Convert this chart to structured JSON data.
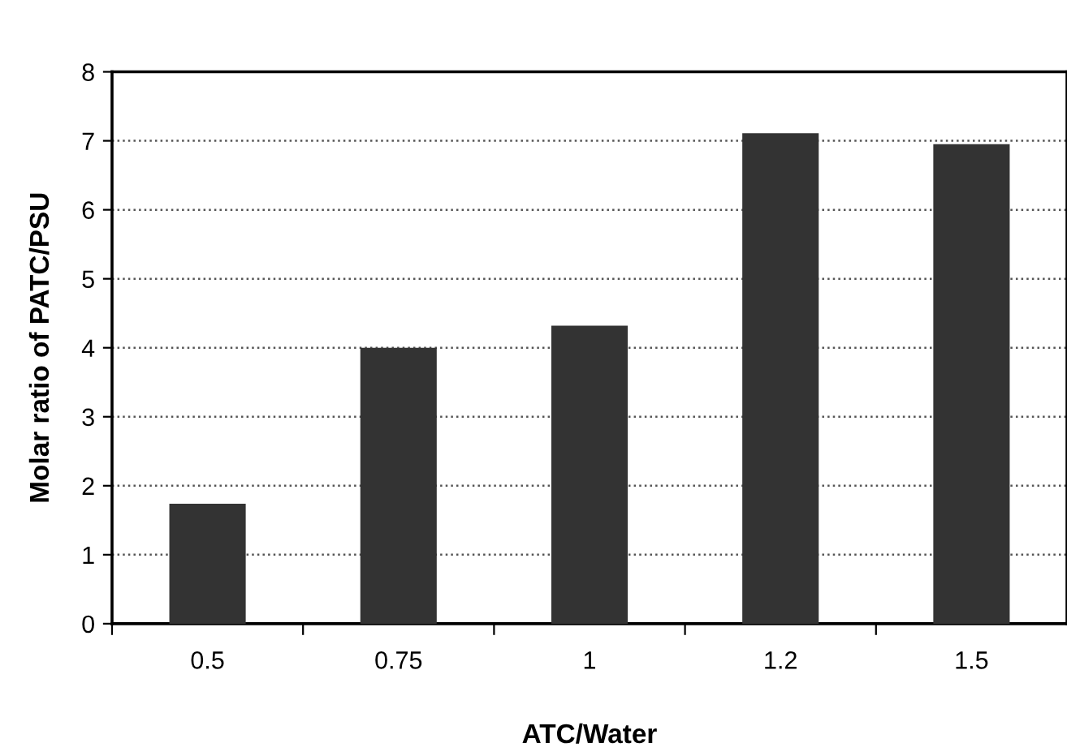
{
  "chart_data": {
    "type": "bar",
    "xlabel": "ATC/Water",
    "ylabel": "Molar ratio of PATC/PSU",
    "categories": [
      "0.5",
      "0.75",
      "1",
      "1.2",
      "1.5"
    ],
    "values": [
      1.74,
      4.0,
      4.32,
      7.11,
      6.95
    ],
    "color": "#333333",
    "ylim": [
      0,
      8
    ],
    "yticks": [
      0,
      1,
      2,
      3,
      4,
      5,
      6,
      7,
      8
    ],
    "grid": "y",
    "line_style": "dotted"
  }
}
